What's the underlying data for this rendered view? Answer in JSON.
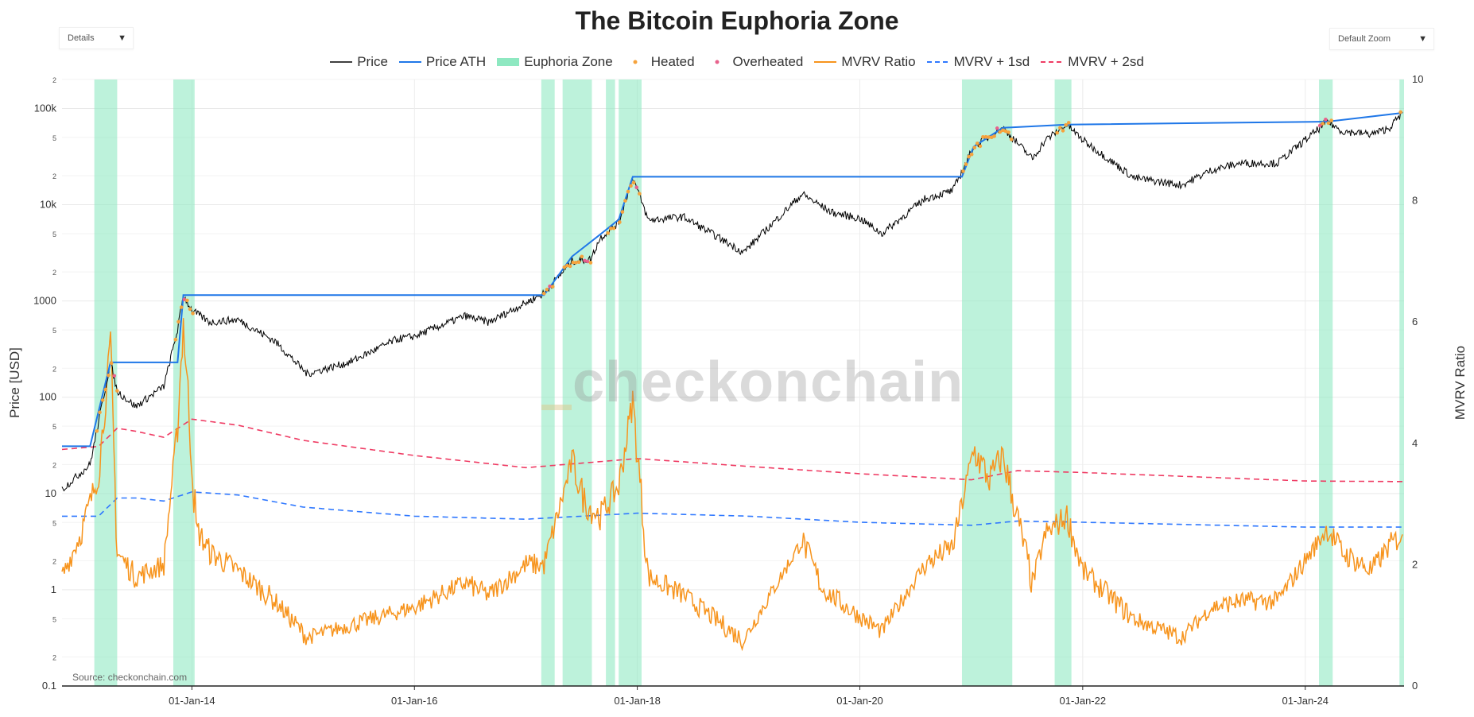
{
  "header": {
    "title": "The Bitcoin Euphoria Zone",
    "details_dropdown": "Details",
    "zoom_dropdown": "Default Zoom"
  },
  "watermark": "checkonchain",
  "source": "Source: checkonchain.com",
  "chart_data": {
    "type": "line",
    "title": "The Bitcoin Euphoria Zone",
    "xlabel": "",
    "ylabel": "Price [USD]",
    "y2label": "MVRV Ratio",
    "y_scale": "log",
    "ylim": [
      0.1,
      200000
    ],
    "y2lim": [
      0,
      10
    ],
    "xlim": [
      "2012-11-01",
      "2024-11-20"
    ],
    "x_ticks": [
      "01-Jan-14",
      "01-Jan-16",
      "01-Jan-18",
      "01-Jan-20",
      "01-Jan-22",
      "01-Jan-24"
    ],
    "y_ticks": [
      "0.1",
      "2",
      "5",
      "1",
      "2",
      "5",
      "10",
      "2",
      "5",
      "100",
      "2",
      "5",
      "1000",
      "2",
      "5",
      "10k",
      "2",
      "5",
      "100k",
      "2"
    ],
    "y2_ticks": [
      "0",
      "2",
      "4",
      "6",
      "8",
      "10"
    ],
    "grid": true,
    "legend_position": "top",
    "legend": [
      "Price",
      "Price ATH",
      "Euphoria Zone",
      "Heated",
      "Overheated",
      "MVRV Ratio",
      "MVRV + 1sd",
      "MVRV + 2sd"
    ],
    "colors": {
      "price": "#000000",
      "price_ath": "#1f77e8",
      "euphoria": "#8ee8c1",
      "heated": "#f6a33c",
      "overheated": "#e8628c",
      "mvrv": "#f7941d",
      "mvrv_1sd": "#2f78ff",
      "mvrv_2sd": "#ef3b63"
    },
    "series": [
      {
        "name": "Price",
        "axis": "y",
        "x": [
          "2012-11-01",
          "2013-02-01",
          "2013-04-09",
          "2013-05-01",
          "2013-07-01",
          "2013-10-01",
          "2013-11-15",
          "2013-12-04",
          "2014-01-01",
          "2014-03-01",
          "2014-06-01",
          "2014-10-01",
          "2015-01-14",
          "2015-06-01",
          "2015-11-04",
          "2016-01-01",
          "2016-06-15",
          "2016-09-01",
          "2017-01-01",
          "2017-03-01",
          "2017-06-01",
          "2017-08-01",
          "2017-09-01",
          "2017-11-01",
          "2017-12-17",
          "2018-02-06",
          "2018-06-01",
          "2018-12-15",
          "2019-06-26",
          "2019-10-01",
          "2020-01-01",
          "2020-03-13",
          "2020-08-01",
          "2020-11-01",
          "2021-01-08",
          "2021-04-14",
          "2021-07-20",
          "2021-09-01",
          "2021-11-10",
          "2022-01-01",
          "2022-06-18",
          "2022-11-21",
          "2023-03-01",
          "2023-06-01",
          "2023-10-01",
          "2024-03-14",
          "2024-05-01",
          "2024-08-05",
          "2024-10-01",
          "2024-11-15"
        ],
        "values": [
          11,
          20,
          230,
          115,
          80,
          130,
          500,
          1150,
          800,
          600,
          640,
          380,
          175,
          230,
          400,
          430,
          700,
          600,
          960,
          1200,
          2600,
          2700,
          4500,
          6500,
          19500,
          6900,
          7500,
          3200,
          12900,
          8300,
          7200,
          5000,
          11500,
          14000,
          40000,
          63000,
          30000,
          47000,
          68000,
          47000,
          19000,
          16000,
          23000,
          27000,
          27000,
          73000,
          58000,
          54000,
          62000,
          90000
        ]
      },
      {
        "name": "Price ATH",
        "axis": "y",
        "x": [
          "2012-11-01",
          "2013-02-01",
          "2013-04-09",
          "2013-11-15",
          "2013-12-04",
          "2017-03-01",
          "2017-06-01",
          "2017-09-01",
          "2017-11-01",
          "2017-12-17",
          "2020-12-01",
          "2021-01-08",
          "2021-04-14",
          "2021-11-10",
          "2024-03-14",
          "2024-11-15"
        ],
        "values": [
          31,
          31,
          230,
          230,
          1150,
          1150,
          2900,
          4900,
          7000,
          19500,
          19500,
          40000,
          63000,
          68000,
          73000,
          90000
        ]
      },
      {
        "name": "MVRV Ratio",
        "axis": "y2",
        "x": [
          "2012-11-01",
          "2013-01-01",
          "2013-03-01",
          "2013-04-09",
          "2013-05-01",
          "2013-07-01",
          "2013-10-01",
          "2013-11-15",
          "2013-12-04",
          "2014-01-15",
          "2014-03-01",
          "2014-06-01",
          "2014-10-01",
          "2015-01-14",
          "2015-06-01",
          "2016-01-01",
          "2016-06-15",
          "2016-09-01",
          "2017-01-01",
          "2017-03-01",
          "2017-06-01",
          "2017-07-15",
          "2017-09-01",
          "2017-11-01",
          "2017-12-17",
          "2018-02-06",
          "2018-06-01",
          "2018-12-15",
          "2019-06-26",
          "2019-09-01",
          "2019-12-15",
          "2020-03-13",
          "2020-08-01",
          "2020-11-01",
          "2021-01-08",
          "2021-03-01",
          "2021-04-14",
          "2021-07-20",
          "2021-09-01",
          "2021-11-10",
          "2022-01-01",
          "2022-06-18",
          "2022-11-21",
          "2023-03-01",
          "2023-06-01",
          "2023-10-01",
          "2024-03-14",
          "2024-05-01",
          "2024-08-05",
          "2024-10-01",
          "2024-11-15"
        ],
        "values": [
          1.8,
          2.5,
          3.5,
          5.6,
          2.2,
          1.8,
          2.0,
          4.3,
          6.0,
          2.6,
          2.2,
          1.9,
          1.4,
          0.8,
          1.0,
          1.3,
          1.7,
          1.5,
          2.0,
          2.0,
          3.7,
          3.0,
          2.8,
          3.3,
          4.7,
          1.8,
          1.5,
          0.75,
          2.4,
          1.6,
          1.2,
          0.9,
          2.0,
          2.3,
          3.9,
          3.4,
          3.8,
          1.7,
          2.5,
          2.8,
          1.9,
          1.1,
          0.8,
          1.3,
          1.4,
          1.4,
          2.6,
          2.2,
          1.9,
          2.3,
          2.5
        ]
      },
      {
        "name": "MVRV + 1sd",
        "axis": "y2",
        "x": [
          "2012-11-01",
          "2013-03-01",
          "2013-05-01",
          "2013-07-01",
          "2013-10-01",
          "2014-01-01",
          "2014-06-01",
          "2015-01-01",
          "2016-01-01",
          "2017-01-01",
          "2018-01-01",
          "2019-01-01",
          "2020-01-01",
          "2021-01-01",
          "2021-06-01",
          "2022-01-01",
          "2023-01-01",
          "2024-01-01",
          "2024-11-20"
        ],
        "values": [
          2.8,
          2.8,
          3.1,
          3.1,
          3.05,
          3.2,
          3.15,
          2.95,
          2.8,
          2.75,
          2.85,
          2.8,
          2.7,
          2.65,
          2.72,
          2.7,
          2.66,
          2.62,
          2.62
        ]
      },
      {
        "name": "MVRV + 2sd",
        "axis": "y2",
        "x": [
          "2012-11-01",
          "2013-03-01",
          "2013-05-01",
          "2013-07-01",
          "2013-10-01",
          "2014-01-01",
          "2014-06-01",
          "2015-01-01",
          "2016-01-01",
          "2017-01-01",
          "2018-01-01",
          "2019-01-01",
          "2020-01-01",
          "2021-01-01",
          "2021-06-01",
          "2022-01-01",
          "2023-01-01",
          "2024-01-01",
          "2024-11-20"
        ],
        "values": [
          3.9,
          3.95,
          4.25,
          4.2,
          4.1,
          4.4,
          4.3,
          4.05,
          3.8,
          3.6,
          3.75,
          3.62,
          3.5,
          3.4,
          3.55,
          3.52,
          3.45,
          3.38,
          3.37
        ]
      }
    ],
    "euphoria_zones": [
      [
        "2013-02-15",
        "2013-05-01"
      ],
      [
        "2013-11-01",
        "2014-01-10"
      ],
      [
        "2017-02-20",
        "2017-04-05"
      ],
      [
        "2017-05-01",
        "2017-08-05"
      ],
      [
        "2017-09-20",
        "2017-10-20"
      ],
      [
        "2017-11-01",
        "2018-01-15"
      ],
      [
        "2020-12-01",
        "2021-05-15"
      ],
      [
        "2021-10-01",
        "2021-11-25"
      ],
      [
        "2024-02-15",
        "2024-03-31"
      ],
      [
        "2024-11-05",
        "2024-12-20"
      ]
    ]
  }
}
